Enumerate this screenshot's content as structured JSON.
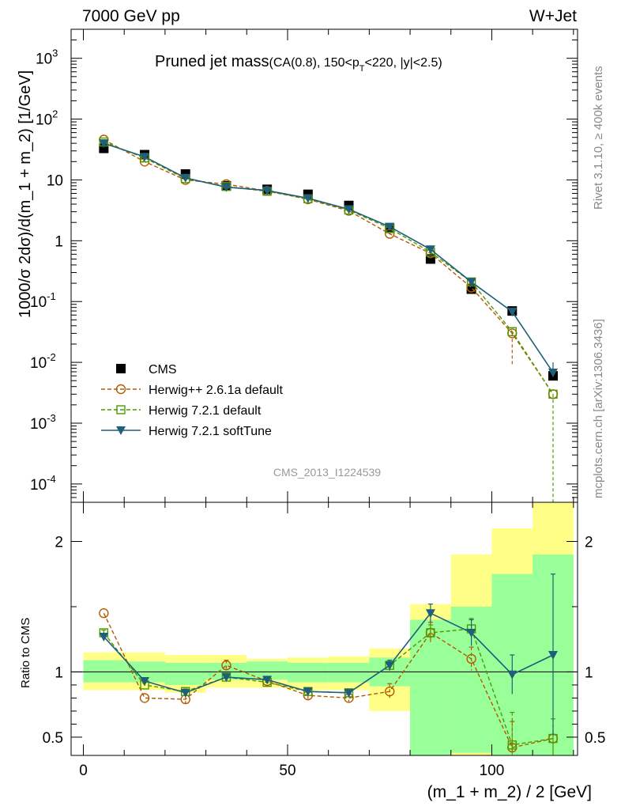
{
  "header": {
    "left": "7000 GeV pp",
    "right": "W+Jet"
  },
  "title": {
    "main": "Pruned jet mass",
    "sub_a": "(CA(0.8), 150<p",
    "sub_b": "T",
    "sub_c": "<220, |y|<2.5)"
  },
  "side_labels": {
    "rivet": "Rivet 3.1.10, ≥ 400k events",
    "mcplots": "mcplots.cern.ch [arXiv:1306.3436]"
  },
  "analysis_id": "CMS_2013_I1224539",
  "chart_data": {
    "type": "line",
    "log_y_main": true,
    "ylabel_main": "1000/σ 2dσ)/d(m_1 + m_2) [1/GeV]",
    "ylabel_ratio": "Ratio to CMS",
    "xlabel": "(m_1 + m_2) / 2 [GeV]",
    "xlim": [
      -3,
      121
    ],
    "ylim_main": [
      5e-05,
      3000
    ],
    "ylim_ratio": [
      0.36,
      2.3
    ],
    "x_ticks": [
      0,
      50,
      100
    ],
    "x_tick_labels": [
      "0",
      "50",
      "100"
    ],
    "y_ticks_main": [
      {
        "value": 0.0001,
        "base": "10",
        "exp": "-4"
      },
      {
        "value": 0.001,
        "base": "10",
        "exp": "-3"
      },
      {
        "value": 0.01,
        "base": "10",
        "exp": "-2"
      },
      {
        "value": 0.1,
        "base": "10",
        "exp": "-1"
      },
      {
        "value": 1,
        "base": "1",
        "exp": ""
      },
      {
        "value": 10,
        "base": "10",
        "exp": ""
      },
      {
        "value": 100,
        "base": "10",
        "exp": "2"
      },
      {
        "value": 1000,
        "base": "10",
        "exp": "3"
      }
    ],
    "y_ticks_ratio": [
      {
        "value": 0.5,
        "label": "0.5"
      },
      {
        "value": 1,
        "label": "1"
      },
      {
        "value": 2,
        "label": "2"
      }
    ],
    "x": [
      5,
      15,
      25,
      35,
      45,
      55,
      65,
      75,
      85,
      95,
      105,
      115
    ],
    "bin_edges": [
      0,
      10,
      20,
      30,
      40,
      50,
      60,
      70,
      80,
      90,
      100,
      110,
      120
    ],
    "series": [
      {
        "name": "CMS",
        "marker": "square-filled",
        "color": "#000000",
        "values": [
          33,
          26,
          12.5,
          8,
          7,
          5.8,
          3.8,
          1.6,
          0.5,
          0.16,
          0.07,
          0.006
        ]
      },
      {
        "name": "Herwig++ 2.6.1a default",
        "marker": "circle-open",
        "color": "#b35900",
        "line": "dashed",
        "values": [
          46,
          20,
          10,
          8.5,
          6.6,
          4.8,
          3.1,
          1.3,
          0.62,
          0.17,
          0.03,
          0.003
        ],
        "ratio": [
          1.45,
          0.8,
          0.79,
          1.05,
          0.93,
          0.82,
          0.8,
          0.85,
          1.3,
          1.1,
          0.42,
          0.49
        ],
        "ratio_err": [
          0,
          0,
          0.03,
          0.04,
          0.02,
          0.04,
          0.03,
          0.06,
          0.08,
          0.09,
          0.2,
          0
        ]
      },
      {
        "name": "Herwig 7.2.1 default",
        "marker": "square-open",
        "color": "#4c9a00",
        "line": "dashed",
        "values": [
          42,
          23,
          10.5,
          7.8,
          6.5,
          4.9,
          3.2,
          1.6,
          0.65,
          0.21,
          0.032,
          0.003
        ],
        "ratio": [
          1.3,
          0.9,
          0.85,
          0.96,
          0.92,
          0.85,
          0.84,
          1.05,
          1.3,
          1.33,
          0.44,
          0.49
        ],
        "ratio_err": [
          0.02,
          0.02,
          0.02,
          0.02,
          0.02,
          0.02,
          0.02,
          0.03,
          0.06,
          0.08,
          0.25,
          0.15
        ]
      },
      {
        "name": "Herwig 7.2.1 softTune",
        "marker": "triangle-down-filled",
        "color": "#1f5f7a",
        "line": "solid",
        "values": [
          40,
          24,
          10.8,
          7.6,
          6.7,
          5,
          3.3,
          1.7,
          0.72,
          0.21,
          0.068,
          0.0068
        ],
        "ratio": [
          1.27,
          0.93,
          0.84,
          0.96,
          0.94,
          0.85,
          0.84,
          1.05,
          1.45,
          1.3,
          0.98,
          1.13
        ],
        "ratio_err": [
          0.02,
          0.02,
          0.02,
          0.02,
          0.02,
          0.02,
          0.02,
          0.04,
          0.07,
          0.1,
          0.15,
          0.62
        ]
      }
    ],
    "bands": {
      "inner_color": "#99ff99",
      "outer_color": "#ffff88",
      "inner": [
        [
          0.92,
          1.09
        ],
        [
          0.92,
          1.08
        ],
        [
          0.9,
          1.07
        ],
        [
          0.94,
          1.07
        ],
        [
          0.94,
          1.08
        ],
        [
          0.92,
          1.07
        ],
        [
          0.92,
          1.07
        ],
        [
          0.89,
          1.11
        ],
        [
          0.36,
          1.4
        ],
        [
          0.38,
          1.5
        ],
        [
          0.36,
          1.75
        ],
        [
          0.36,
          1.9
        ]
      ],
      "outer": [
        [
          0.86,
          1.15
        ],
        [
          0.86,
          1.15
        ],
        [
          0.84,
          1.13
        ],
        [
          0.88,
          1.13
        ],
        [
          0.88,
          1.1
        ],
        [
          0.86,
          1.11
        ],
        [
          0.86,
          1.12
        ],
        [
          0.7,
          1.18
        ],
        [
          0.36,
          1.52
        ],
        [
          0.36,
          1.9
        ],
        [
          0.36,
          2.1
        ],
        [
          0.36,
          2.3
        ]
      ]
    }
  }
}
